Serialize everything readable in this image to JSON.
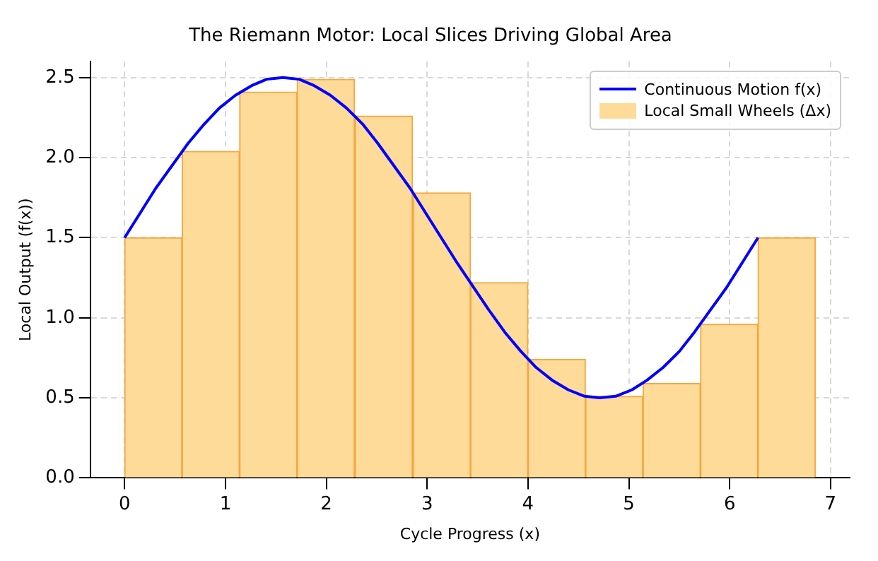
{
  "chart_data": {
    "type": "histogram",
    "title": "The Riemann Motor: Local Slices Driving Global Area",
    "xlabel": "Cycle Progress (x)",
    "ylabel": "Local Output (f(x))",
    "bins": [
      0,
      0.57,
      1.14,
      1.71,
      2.28,
      2.86,
      3.43,
      4.0,
      4.57,
      5.14,
      5.71,
      6.28,
      6.85
    ],
    "series": [
      {
        "name": "Continuous Motion f(x)",
        "type": "line",
        "color": "#0000ff",
        "x": [
          0,
          0.16,
          0.31,
          0.47,
          0.63,
          0.79,
          0.94,
          1.1,
          1.26,
          1.41,
          1.57,
          1.73,
          1.88,
          2.04,
          2.2,
          2.36,
          2.51,
          2.67,
          2.83,
          2.98,
          3.14,
          3.3,
          3.46,
          3.61,
          3.77,
          3.93,
          4.08,
          4.24,
          4.4,
          4.56,
          4.71,
          4.87,
          5.03,
          5.18,
          5.34,
          5.5,
          5.65,
          5.81,
          5.97,
          6.12,
          6.28
        ],
        "values": [
          1.5,
          1.66,
          1.81,
          1.95,
          2.09,
          2.21,
          2.31,
          2.39,
          2.45,
          2.49,
          2.5,
          2.49,
          2.45,
          2.39,
          2.31,
          2.21,
          2.09,
          1.95,
          1.81,
          1.66,
          1.5,
          1.34,
          1.19,
          1.05,
          0.91,
          0.79,
          0.69,
          0.61,
          0.55,
          0.51,
          0.5,
          0.51,
          0.55,
          0.61,
          0.69,
          0.79,
          0.91,
          1.05,
          1.19,
          1.34,
          1.5
        ]
      },
      {
        "name": "Local Small Wheels (Δx)",
        "type": "histogram",
        "color": "#ffdb99",
        "values": [
          1.5,
          2.04,
          2.41,
          2.49,
          2.26,
          1.78,
          1.22,
          0.74,
          0.51,
          0.59,
          0.96,
          1.5
        ]
      }
    ],
    "xlim": [
      -0.34,
      7.19
    ],
    "xticks": [
      0,
      1,
      2,
      3,
      4,
      5,
      6,
      7
    ],
    "ylim": [
      0,
      2.6
    ],
    "yticks": [
      {
        "value": 0,
        "label": "0.0"
      },
      0.5,
      {
        "value": 1,
        "label": "1.0"
      },
      1.5,
      {
        "value": 2,
        "label": "2.0"
      },
      2.5
    ],
    "grid": true,
    "legend": "top right",
    "marker": "none",
    "line_style": "solid"
  }
}
